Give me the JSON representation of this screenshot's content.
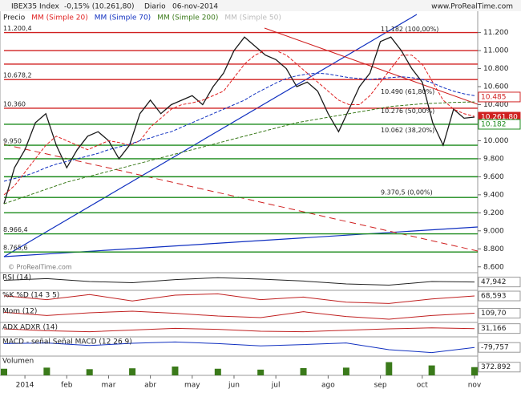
{
  "header": {
    "symbol": "IBEX35 Index",
    "change": "-0,15% (10.261,80)",
    "period": "Diario",
    "date": "06-nov-2014",
    "site": "www.ProRealTime.com",
    "watermark": "© ProRealTime.com"
  },
  "chart_data": {
    "type": "line",
    "categories": [
      null,
      null,
      "2014",
      null,
      null,
      null,
      "feb",
      null,
      null,
      null,
      "mar",
      null,
      null,
      null,
      "abr",
      null,
      null,
      null,
      "may",
      null,
      null,
      null,
      "jun",
      null,
      null,
      null,
      "jul",
      null,
      null,
      null,
      null,
      "ago",
      null,
      null,
      null,
      null,
      "sep",
      null,
      null,
      null,
      "oct",
      null,
      null,
      null,
      null,
      "nov"
    ],
    "series": [
      {
        "name": "Precio",
        "color": "#1a1a1a",
        "values": [
          9300,
          9700,
          9900,
          10200,
          10300,
          9950,
          9700,
          9900,
          10050,
          10100,
          10000,
          9800,
          9950,
          10300,
          10450,
          10300,
          10400,
          10450,
          10500,
          10400,
          10600,
          10750,
          11000,
          11150,
          11050,
          10950,
          10900,
          10800,
          10600,
          10650,
          10550,
          10300,
          10100,
          10350,
          10600,
          10750,
          11100,
          11150,
          11000,
          10800,
          10650,
          10200,
          9950,
          10350,
          10250,
          10261.8
        ]
      },
      {
        "name": "MM (Simple 20)",
        "color": "#e02020",
        "values": [
          9400,
          9500,
          9650,
          9800,
          9950,
          10050,
          10000,
          9950,
          9900,
          9950,
          10000,
          9980,
          9950,
          10000,
          10150,
          10250,
          10350,
          10400,
          10420,
          10450,
          10500,
          10550,
          10700,
          10850,
          10950,
          11000,
          11000,
          10950,
          10850,
          10750,
          10650,
          10550,
          10450,
          10400,
          10400,
          10500,
          10650,
          10800,
          10950,
          10950,
          10850,
          10650,
          10450,
          10350,
          10300,
          10270
        ]
      },
      {
        "name": "MM (Simple 70)",
        "color": "#1030c0",
        "values": [
          9550,
          9580,
          9610,
          9650,
          9700,
          9740,
          9770,
          9800,
          9830,
          9860,
          9900,
          9930,
          9960,
          10000,
          10030,
          10070,
          10100,
          10150,
          10200,
          10250,
          10300,
          10350,
          10400,
          10450,
          10520,
          10580,
          10640,
          10690,
          10720,
          10740,
          10750,
          10740,
          10720,
          10700,
          10690,
          10680,
          10690,
          10700,
          10710,
          10700,
          10680,
          10640,
          10590,
          10550,
          10520,
          10500
        ]
      },
      {
        "name": "MM (Simple 200)",
        "color": "#3a7a1a",
        "values": [
          9300,
          9340,
          9380,
          9420,
          9460,
          9500,
          9540,
          9570,
          9600,
          9630,
          9660,
          9690,
          9720,
          9750,
          9780,
          9810,
          9840,
          9870,
          9900,
          9930,
          9960,
          9990,
          10020,
          10050,
          10080,
          10110,
          10140,
          10170,
          10200,
          10220,
          10240,
          10260,
          10280,
          10300,
          10320,
          10340,
          10360,
          10380,
          10390,
          10400,
          10410,
          10415,
          10420,
          10425,
          10428,
          10430
        ]
      }
    ],
    "legend_extra": "MM (Simple 50)",
    "ylim": [
      8580,
      11410
    ],
    "yticks": [
      {
        "value": 11200,
        "label": "11.200"
      },
      {
        "value": 11000,
        "label": "11.000"
      },
      {
        "value": 10800,
        "label": "10.800"
      },
      {
        "value": 10600,
        "label": "10.600"
      },
      {
        "value": 10400,
        "label": "10.400"
      },
      {
        "value": 10200,
        "label": "10.200"
      },
      {
        "value": 10000,
        "label": "10.000"
      },
      {
        "value": 9800,
        "label": "9.800"
      },
      {
        "value": 9600,
        "label": "9.600"
      },
      {
        "value": 9400,
        "label": "9.400"
      },
      {
        "value": 9200,
        "label": "9.200"
      },
      {
        "value": 9000,
        "label": "9.000"
      },
      {
        "value": 8800,
        "label": "8.800"
      },
      {
        "value": 8600,
        "label": "8.600"
      }
    ],
    "levels": [
      {
        "value": 11200.4,
        "label": "11.200,4",
        "color": "#d02020"
      },
      {
        "value": 11000,
        "color": "#d02020"
      },
      {
        "value": 10850,
        "color": "#d02020"
      },
      {
        "value": 10678.2,
        "label": "10.678,2",
        "color": "#d02020"
      },
      {
        "value": 10360,
        "label": "10.360",
        "color": "#d02020"
      },
      {
        "value": 10182,
        "color": "#1a8a1a"
      },
      {
        "value": 9950,
        "label": "9.950",
        "color": "#1a8a1a"
      },
      {
        "value": 9800,
        "color": "#1a8a1a"
      },
      {
        "value": 9600,
        "color": "#1a8a1a"
      },
      {
        "value": 9370.5,
        "color": "#1a8a1a"
      },
      {
        "value": 9200,
        "color": "#1a8a1a"
      },
      {
        "value": 8966.4,
        "label": "8.966,4",
        "color": "#1a8a1a"
      },
      {
        "value": 8765.6,
        "label": "8.765,6",
        "color": "#1a8a1a"
      }
    ],
    "price_boxes": [
      {
        "value": 10485,
        "label": "10.485",
        "color": "#d02020"
      },
      {
        "value": 10261.8,
        "label": "10.261,80",
        "color": "#d02020"
      },
      {
        "value": 10182,
        "label": "10.182",
        "color": "#1a8a1a"
      }
    ],
    "annotations": [
      {
        "value": 11182,
        "label": "11.182 (100,00%)"
      },
      {
        "value": 10490,
        "label": "10.490 (61,80%)"
      },
      {
        "value": 10276,
        "label": "10.276 (50,00%)"
      },
      {
        "value": 10062,
        "label": "10.062 (38,20%)"
      },
      {
        "value": 9370.5,
        "label": "9.370,5 (0,00%)"
      }
    ],
    "panels": [
      {
        "name": "RSI (14)",
        "color": "#222",
        "last": {
          "value": 47.942,
          "label": "47,942"
        },
        "ylim": [
          20,
          80
        ],
        "values": [
          55,
          62,
          50,
          45,
          58,
          66,
          60,
          52,
          40,
          35,
          50,
          48
        ]
      },
      {
        "name": "%K  %D (14 3 5)",
        "color": "#c02020",
        "last": {
          "value": 68.593,
          "label": "68,593"
        },
        "ylim": [
          0,
          100
        ],
        "values": [
          70,
          40,
          80,
          30,
          75,
          85,
          40,
          60,
          20,
          10,
          45,
          69
        ]
      },
      {
        "name": "Mom (12)",
        "color": "#c02020",
        "last": {
          "value": 109.7,
          "label": "109,70"
        },
        "ylim": [
          -600,
          600
        ],
        "values": [
          200,
          -100,
          150,
          300,
          100,
          -150,
          -300,
          250,
          -200,
          -450,
          -100,
          110
        ]
      },
      {
        "name": "ADX  ADXR (14)",
        "color": "#c02020",
        "last": {
          "value": 31.166,
          "label": "31,166"
        },
        "ylim": [
          0,
          50
        ],
        "values": [
          30,
          22,
          18,
          25,
          32,
          28,
          20,
          18,
          24,
          30,
          34,
          31
        ]
      },
      {
        "name": "MACD - señal  Señal  MACD (12 26 9)",
        "color": "#1030c0",
        "last": {
          "value": -79.757,
          "label": "-79,757"
        },
        "ylim": [
          -300,
          200
        ],
        "values": [
          40,
          60,
          -20,
          50,
          90,
          40,
          -30,
          10,
          60,
          -150,
          -240,
          -80
        ]
      },
      {
        "name": "Volumen",
        "color": "#3a7a1a",
        "last": {
          "value": 372892,
          "label": "372.892"
        },
        "ylim": [
          0,
          800000
        ],
        "values": [
          300000,
          350000,
          280000,
          320000,
          400000,
          300000,
          260000,
          330000,
          350000,
          600000,
          450000,
          372892
        ]
      }
    ]
  }
}
